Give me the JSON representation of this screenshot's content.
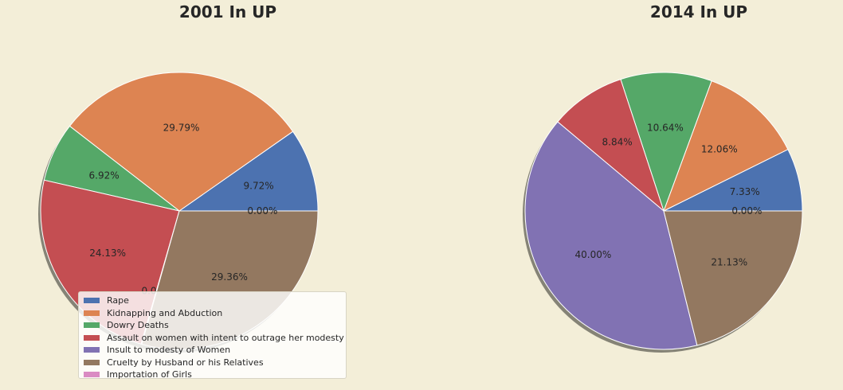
{
  "chart_data": [
    {
      "type": "pie",
      "title": "2001 In UP",
      "labels": [
        "Rape",
        "Kidnapping and Abduction",
        "Dowry Deaths",
        "Assault on women with intent to outrage her modesty",
        "Insult to modesty of Women",
        "Cruelty by Husband or his Relatives",
        "Importation of Girls"
      ],
      "values": [
        9.72,
        29.79,
        6.92,
        24.13,
        0.08,
        29.36,
        0.0
      ],
      "value_labels": [
        "9.72%",
        "29.79%",
        "6.92%",
        "24.13%",
        "0.08%",
        "29.36%",
        "0.00%"
      ],
      "shadow": true,
      "legend": "bottom-left"
    },
    {
      "type": "pie",
      "title": "2014 In UP",
      "labels": [
        "Rape",
        "Kidnapping and Abduction",
        "Dowry Deaths",
        "Assault on women with intent to outrage her modesty",
        "Insult to modesty of Women",
        "Cruelty by Husband or his Relatives",
        "Importation of Girls"
      ],
      "values": [
        7.33,
        12.06,
        10.64,
        8.84,
        40.0,
        21.13,
        0.0
      ],
      "value_labels": [
        "7.33%",
        "12.06%",
        "10.64%",
        "8.84%",
        "40.00%",
        "21.13%",
        "0.00%"
      ],
      "shadow": true
    }
  ],
  "legend": {
    "entries": [
      "Rape",
      "Kidnapping and Abduction",
      "Dowry Deaths",
      "Assault on women with intent to outrage her modesty",
      "Insult to modesty of Women",
      "Cruelty by Husband or his Relatives",
      "Importation of Girls"
    ]
  },
  "colors": [
    "#4c72b0",
    "#dd8452",
    "#55a868",
    "#c44e52",
    "#8172b3",
    "#937860",
    "#da8bc3"
  ]
}
